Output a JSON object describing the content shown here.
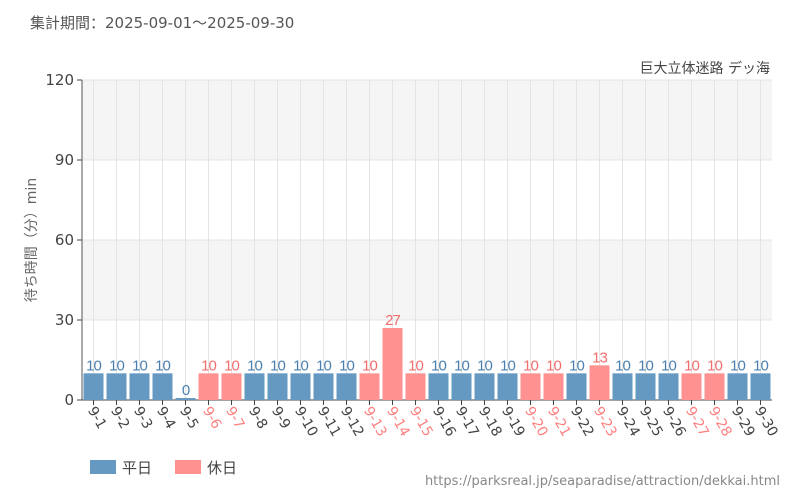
{
  "subtitle": "集計期間：2025-09-01～2025-09-30",
  "url": "https://parksreal.jp/seaparadise/attraction/dekkai.html",
  "chart_data": {
    "type": "bar",
    "title": "巨大立体迷路 デッ海",
    "ylabel": "待ち時間（分）min",
    "ylim": [
      0,
      120
    ],
    "yticks": [
      0,
      30,
      60,
      90,
      120
    ],
    "categories": [
      "9-1",
      "9-2",
      "9-3",
      "9-4",
      "9-5",
      "9-6",
      "9-7",
      "9-8",
      "9-9",
      "9-10",
      "9-11",
      "9-12",
      "9-13",
      "9-14",
      "9-15",
      "9-16",
      "9-17",
      "9-18",
      "9-19",
      "9-20",
      "9-21",
      "9-22",
      "9-23",
      "9-24",
      "9-25",
      "9-26",
      "9-27",
      "9-28",
      "9-29",
      "9-30"
    ],
    "values": [
      10,
      10,
      10,
      10,
      0,
      10,
      10,
      10,
      10,
      10,
      10,
      10,
      10,
      27,
      10,
      10,
      10,
      10,
      10,
      10,
      10,
      10,
      13,
      10,
      10,
      10,
      10,
      10,
      10,
      10
    ],
    "day_type": [
      "w",
      "w",
      "w",
      "w",
      "w",
      "h",
      "h",
      "w",
      "w",
      "w",
      "w",
      "w",
      "h",
      "h",
      "h",
      "w",
      "w",
      "w",
      "w",
      "h",
      "h",
      "w",
      "h",
      "w",
      "w",
      "w",
      "h",
      "h",
      "w",
      "w"
    ],
    "legend": [
      {
        "key": "w",
        "label": "平日",
        "color": "#6699c2"
      },
      {
        "key": "h",
        "label": "休日",
        "color": "#ff9191"
      }
    ],
    "label_colors": {
      "w": "#4a7fb0",
      "h": "#f26d6d"
    },
    "tick_colors": {
      "w": "#444444",
      "h": "#ff8080"
    },
    "legend_position": "bottom-left"
  }
}
